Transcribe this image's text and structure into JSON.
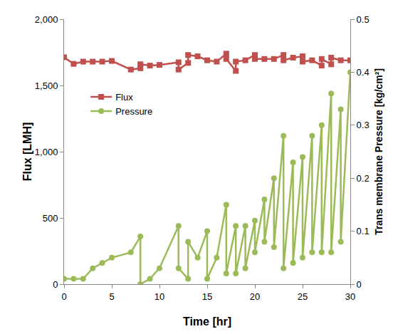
{
  "chart_data": {
    "type": "line",
    "x_label": "Time [hr]",
    "y_label": "Flux [LMH]",
    "y2_label": "Trans membrane Pressure [kg/cm²]",
    "xlim": [
      0,
      30
    ],
    "xticks": [
      0,
      5,
      10,
      15,
      20,
      25,
      30
    ],
    "ylim": [
      0,
      2000
    ],
    "yticks": [
      0,
      500,
      {
        "value": 1000,
        "label": "1,000"
      },
      {
        "value": 1500,
        "label": "1,500"
      },
      {
        "value": 2000,
        "label": "2,000"
      }
    ],
    "y2lim": [
      0,
      0.5
    ],
    "y2ticks": [
      0,
      0.1,
      0.2,
      0.3,
      0.4,
      0.5
    ],
    "grid": false,
    "legend": "left",
    "series": [
      {
        "name": "Flux",
        "color": "#c0504d",
        "marker": "square",
        "axis": "y",
        "x": [
          0,
          1,
          2,
          3,
          4,
          5,
          7,
          8,
          8,
          9,
          10,
          12,
          12,
          13,
          13,
          14,
          15,
          16,
          17,
          17,
          18,
          18,
          19,
          20,
          20,
          21,
          22,
          23,
          23,
          24,
          25,
          25,
          26,
          27,
          27,
          28,
          28,
          29,
          30
        ],
        "values": [
          1713,
          1663,
          1680,
          1680,
          1680,
          1685,
          1620,
          1630,
          1660,
          1650,
          1655,
          1675,
          1620,
          1670,
          1730,
          1720,
          1690,
          1680,
          1740,
          1700,
          1610,
          1680,
          1690,
          1730,
          1700,
          1700,
          1700,
          1730,
          1690,
          1710,
          1720,
          1680,
          1690,
          1650,
          1700,
          1660,
          1710,
          1690,
          1690
        ]
      },
      {
        "name": "Pressure",
        "color": "#9bbb59",
        "marker": "circle",
        "axis": "y2",
        "x": [
          0,
          1,
          2,
          3,
          4,
          5,
          7,
          8,
          8,
          9,
          10,
          12,
          12,
          13,
          13,
          14,
          15,
          15,
          16,
          17,
          17,
          18,
          18,
          19,
          19,
          20,
          20,
          21,
          21,
          22,
          22,
          23,
          23,
          24,
          24,
          25,
          25,
          26,
          26,
          27,
          27,
          28,
          28,
          29,
          29,
          30
        ],
        "values": [
          0.01,
          0.01,
          0.01,
          0.03,
          0.04,
          0.05,
          0.06,
          0.09,
          0.0,
          0.01,
          0.03,
          0.11,
          0.03,
          0.01,
          0.08,
          0.05,
          0.1,
          0.01,
          0.05,
          0.15,
          0.02,
          0.11,
          0.02,
          0.11,
          0.03,
          0.12,
          0.06,
          0.16,
          0.08,
          0.2,
          0.07,
          0.28,
          0.03,
          0.23,
          0.04,
          0.24,
          0.05,
          0.28,
          0.06,
          0.3,
          0.06,
          0.36,
          0.06,
          0.33,
          0.08,
          0.4
        ]
      }
    ]
  }
}
